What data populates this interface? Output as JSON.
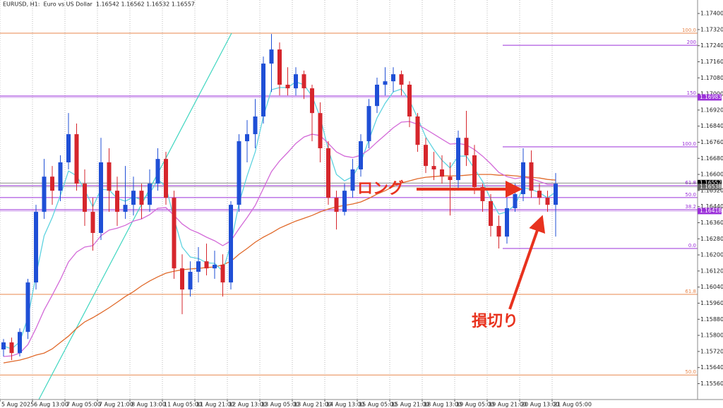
{
  "chart_data": {
    "type": "candlestick",
    "title": "EURUSD, H1:  Euro vs US Dollar  1.16542 1.16562 1.16532 1.16557",
    "categories": [
      "5 Aug 2025",
      null,
      null,
      null,
      "6 Aug 13:00",
      null,
      null,
      null,
      "7 Aug 05:00",
      null,
      null,
      null,
      "7 Aug 21:00",
      null,
      null,
      null,
      "8 Aug 13:00",
      null,
      null,
      null,
      "11 Aug 05:00",
      null,
      null,
      null,
      "11 Aug 21:00",
      null,
      null,
      null,
      "12 Aug 13:00",
      null,
      null,
      null,
      "13 Aug 05:00",
      null,
      null,
      null,
      "13 Aug 21:00",
      null,
      null,
      null,
      "14 Aug 13:00",
      null,
      null,
      null,
      "15 Aug 05:00",
      null,
      null,
      null,
      "15 Aug 21:00",
      null,
      null,
      null,
      "18 Aug 13:00",
      null,
      null,
      null,
      "19 Aug 05:00",
      null,
      null,
      null,
      "19 Aug 21:00",
      null,
      null,
      null,
      "20 Aug 13:00",
      null,
      null,
      null,
      "21 Aug 05:00"
    ],
    "open": [
      1.1573,
      1.15765,
      1.15712,
      1.15817,
      1.16063,
      1.16414,
      1.16589,
      1.16519,
      1.1666,
      1.168,
      1.16554,
      1.16414,
      1.16309,
      1.1666,
      1.16519,
      1.16414,
      1.16449,
      1.16519,
      1.16449,
      1.16554,
      1.16677,
      1.16484,
      1.16133,
      1.16028,
      1.16116,
      1.16168,
      1.16133,
      1.16151,
      1.16063,
      1.16449,
      1.16765,
      1.168,
      1.16888,
      1.17151,
      1.17221,
      1.17046,
      1.17028,
      1.17098,
      1.17028,
      1.16905,
      1.1673,
      1.16484,
      1.16414,
      1.16519,
      1.16625,
      1.16765,
      1.1694,
      1.17046,
      1.17063,
      1.17098,
      1.17046,
      1.16888,
      1.16747,
      1.16642,
      1.16625,
      1.16589,
      1.16572,
      1.16782,
      1.16695,
      1.16537,
      1.16467,
      1.16344,
      1.16291,
      1.16432,
      1.16502,
      1.1666,
      1.16519,
      1.16484,
      1.16449
    ],
    "high": [
      1.15782,
      1.15789,
      1.15835,
      1.16081,
      1.16449,
      1.16677,
      1.16642,
      1.16695,
      1.16905,
      1.16853,
      1.16625,
      1.16484,
      1.16782,
      1.1673,
      1.16589,
      1.16642,
      1.16589,
      1.16554,
      1.16625,
      1.1673,
      1.16712,
      1.16519,
      1.16203,
      1.16168,
      1.16239,
      1.16256,
      1.16221,
      1.16203,
      1.16467,
      1.168,
      1.1687,
      1.16975,
      1.17186,
      1.17298,
      1.17256,
      1.17133,
      1.17133,
      1.17116,
      1.17046,
      1.16958,
      1.16765,
      1.16519,
      1.16554,
      1.16677,
      1.168,
      1.16975,
      1.17081,
      1.17133,
      1.17133,
      1.17116,
      1.17063,
      1.16905,
      1.16782,
      1.16712,
      1.16695,
      1.1666,
      1.16818,
      1.16916,
      1.16747,
      1.16554,
      1.16502,
      1.16396,
      1.16484,
      1.16554,
      1.1673,
      1.16719,
      1.16554,
      1.16519,
      1.16607
    ],
    "low": [
      1.15695,
      1.15677,
      1.15695,
      1.15782,
      1.16028,
      1.16379,
      1.16449,
      1.16467,
      1.16625,
      1.16519,
      1.16344,
      1.16221,
      1.16274,
      1.16414,
      1.16344,
      1.16379,
      1.16396,
      1.16379,
      1.16414,
      1.16519,
      1.16449,
      1.16081,
      1.15905,
      1.15993,
      1.16063,
      1.16098,
      1.16081,
      1.15993,
      1.16028,
      1.16414,
      1.1666,
      1.1673,
      1.16853,
      1.1701,
      1.16993,
      1.16993,
      1.16993,
      1.16975,
      1.16765,
      1.1666,
      1.16449,
      1.16326,
      1.16396,
      1.16484,
      1.16589,
      1.1673,
      1.16905,
      1.16993,
      1.1701,
      1.16993,
      1.16835,
      1.16712,
      1.16607,
      1.16572,
      1.16554,
      1.16396,
      1.16519,
      1.16642,
      1.16502,
      1.16414,
      1.16291,
      1.16232,
      1.16256,
      1.16414,
      1.16467,
      1.16484,
      1.16449,
      1.16414,
      1.16291
    ],
    "close": [
      1.15765,
      1.15712,
      1.15817,
      1.16063,
      1.16414,
      1.16589,
      1.16519,
      1.1666,
      1.168,
      1.16554,
      1.16414,
      1.16309,
      1.1666,
      1.16519,
      1.16414,
      1.16449,
      1.16519,
      1.16449,
      1.16554,
      1.16677,
      1.16484,
      1.16133,
      1.16028,
      1.16116,
      1.16168,
      1.16133,
      1.16151,
      1.16063,
      1.16449,
      1.16765,
      1.168,
      1.16888,
      1.17151,
      1.17221,
      1.17046,
      1.17028,
      1.17098,
      1.17028,
      1.16905,
      1.1673,
      1.16484,
      1.16414,
      1.16519,
      1.16625,
      1.16765,
      1.1694,
      1.17046,
      1.17063,
      1.17098,
      1.17046,
      1.16888,
      1.16747,
      1.16642,
      1.16625,
      1.16589,
      1.16572,
      1.16782,
      1.16695,
      1.16537,
      1.16467,
      1.16344,
      1.16291,
      1.16432,
      1.16502,
      1.1666,
      1.16519,
      1.16484,
      1.16449,
      1.16554
    ],
    "up_color": "#1f4fd6",
    "down_color": "#d6262c",
    "lines": [
      {
        "color": "#e0692a",
        "values": [
          1.15663,
          1.1567,
          1.15677,
          1.15688,
          1.15702,
          1.15712,
          1.15733,
          1.15765,
          1.15796,
          1.15835,
          1.15867,
          1.15888,
          1.15912,
          1.15937,
          1.15965,
          1.15993,
          1.16017,
          1.16046,
          1.1607,
          1.16091,
          1.16109,
          1.16119,
          1.16126,
          1.1613,
          1.16133,
          1.16137,
          1.1614,
          1.16151,
          1.16168,
          1.16203,
          1.16232,
          1.16263,
          1.16288,
          1.16309,
          1.16333,
          1.16351,
          1.16368,
          1.16382,
          1.16396,
          1.16414,
          1.16428,
          1.16439,
          1.16446,
          1.16453,
          1.16463,
          1.16481,
          1.16502,
          1.16519,
          1.1654,
          1.16558,
          1.16568,
          1.16579,
          1.16586,
          1.16589,
          1.16593,
          1.16593,
          1.16593,
          1.16596,
          1.166,
          1.166,
          1.166,
          1.16596,
          1.16596,
          1.16593,
          1.16589,
          1.16586,
          1.16582,
          1.16575,
          1.16572
        ]
      },
      {
        "color": "#5fd3e0",
        "values": [
          1.15747,
          1.15733,
          1.15768,
          1.15888,
          1.16098,
          1.16295,
          1.16386,
          1.16495,
          1.16617,
          1.16593,
          1.16523,
          1.16439,
          1.16526,
          1.16523,
          1.16481,
          1.16467,
          1.16488,
          1.16474,
          1.16505,
          1.16575,
          1.1654,
          1.16379,
          1.16239,
          1.16189,
          1.16182,
          1.16161,
          1.16158,
          1.16119,
          1.16253,
          1.16456,
          1.16593,
          1.16712,
          1.16888,
          1.17021,
          1.17032,
          1.17032,
          1.1706,
          1.17046,
          1.16989,
          1.16884,
          1.16723,
          1.166,
          1.16568,
          1.16589,
          1.1666,
          1.16772,
          1.16881,
          1.16954,
          1.1701,
          1.17025,
          1.16968,
          1.16881,
          1.16786,
          1.16723,
          1.1667,
          1.16632,
          1.16691,
          1.16691,
          1.16628,
          1.16565,
          1.16477,
          1.16403,
          1.16414,
          1.16449,
          1.16533,
          1.16526,
          1.16509,
          1.16484,
          1.16512
        ]
      },
      {
        "color": "#d36ad8",
        "values": [
          1.15695,
          1.15698,
          1.15712,
          1.15754,
          1.15835,
          1.15926,
          1.16,
          1.16077,
          1.16165,
          1.16214,
          1.16239,
          1.16246,
          1.16295,
          1.16323,
          1.16333,
          1.16347,
          1.16368,
          1.16379,
          1.164,
          1.16432,
          1.16435,
          1.16396,
          1.16354,
          1.16326,
          1.16309,
          1.16288,
          1.1627,
          1.16246,
          1.1627,
          1.1633,
          1.16386,
          1.16446,
          1.1653,
          1.16614,
          1.16667,
          1.16709,
          1.16754,
          1.16786,
          1.168,
          1.16793,
          1.16754,
          1.16712,
          1.16691,
          1.16684,
          1.16695,
          1.16723,
          1.16761,
          1.16796,
          1.16832,
          1.1686,
          1.16863,
          1.16849,
          1.16825,
          1.168,
          1.16775,
          1.16751,
          1.16754,
          1.16747,
          1.16723,
          1.16691,
          1.16653,
          1.1661,
          1.16589,
          1.16579,
          1.16586,
          1.16579,
          1.16565,
          1.16551,
          1.16551
        ]
      }
    ],
    "ylim": [
      1.15481,
      1.17467
    ],
    "yticks": [
      {
        "value": 1.174,
        "label": "1.17400"
      },
      {
        "value": 1.1732,
        "label": "1.17320"
      },
      {
        "value": 1.1724,
        "label": "1.17240"
      },
      {
        "value": 1.1716,
        "label": "1.17160"
      },
      {
        "value": 1.1708,
        "label": "1.17080"
      },
      {
        "value": 1.17,
        "label": "1.17000"
      },
      {
        "value": 1.1692,
        "label": "1.16920"
      },
      {
        "value": 1.1684,
        "label": "1.16840"
      },
      {
        "value": 1.1676,
        "label": "1.16760"
      },
      {
        "value": 1.1668,
        "label": "1.16680"
      },
      {
        "value": 1.166,
        "label": "1.16600"
      },
      {
        "value": 1.1652,
        "label": "1.16520"
      },
      {
        "value": 1.1644,
        "label": "1.16440"
      },
      {
        "value": 1.1636,
        "label": "1.16360"
      },
      {
        "value": 1.1628,
        "label": "1.16280"
      },
      {
        "value": 1.162,
        "label": "1.16200"
      },
      {
        "value": 1.1612,
        "label": "1.16120"
      },
      {
        "value": 1.1604,
        "label": "1.16040"
      },
      {
        "value": 1.1596,
        "label": "1.15960"
      },
      {
        "value": 1.1588,
        "label": "1.15880"
      },
      {
        "value": 1.158,
        "label": "1.15800"
      },
      {
        "value": 1.1572,
        "label": "1.15720"
      },
      {
        "value": 1.1564,
        "label": "1.15640"
      },
      {
        "value": 1.1556,
        "label": "1.15560"
      }
    ],
    "grid": true,
    "fib_levels": [
      {
        "label": "100.0",
        "value": 1.17302,
        "color": "#e8874d",
        "full": true
      },
      {
        "label": "61.8",
        "value": 1.16004,
        "color": "#e8874d",
        "full": true
      },
      {
        "label": "50.0",
        "value": 1.15603,
        "color": "#e8874d",
        "full": true
      },
      {
        "label": "200",
        "value": 1.17242,
        "color": "#9b30d9",
        "full": false
      },
      {
        "label": "150",
        "value": 1.1699,
        "color": "#9b30d9",
        "full": true
      },
      {
        "label": "100.0",
        "value": 1.16737,
        "color": "#9b30d9",
        "full": false
      },
      {
        "label": "61.8",
        "value": 1.16544,
        "color": "#9b30d9",
        "full": true
      },
      {
        "label": "50.0",
        "value": 1.16485,
        "color": "#9b30d9",
        "full": true
      },
      {
        "label": "38.2",
        "value": 1.16425,
        "color": "#9b30d9",
        "full": true
      },
      {
        "label": "0.0",
        "value": 1.16232,
        "color": "#9b30d9",
        "full": false
      }
    ],
    "price_labels": [
      {
        "value": 1.16983,
        "color": "#9b30d9"
      },
      {
        "value": 1.16557,
        "color": "#000000"
      },
      {
        "value": 1.16538,
        "color": "#666666"
      },
      {
        "value": 1.16418,
        "color": "#9b30d9"
      }
    ],
    "annotations": [
      "ロング",
      "損切り"
    ]
  }
}
